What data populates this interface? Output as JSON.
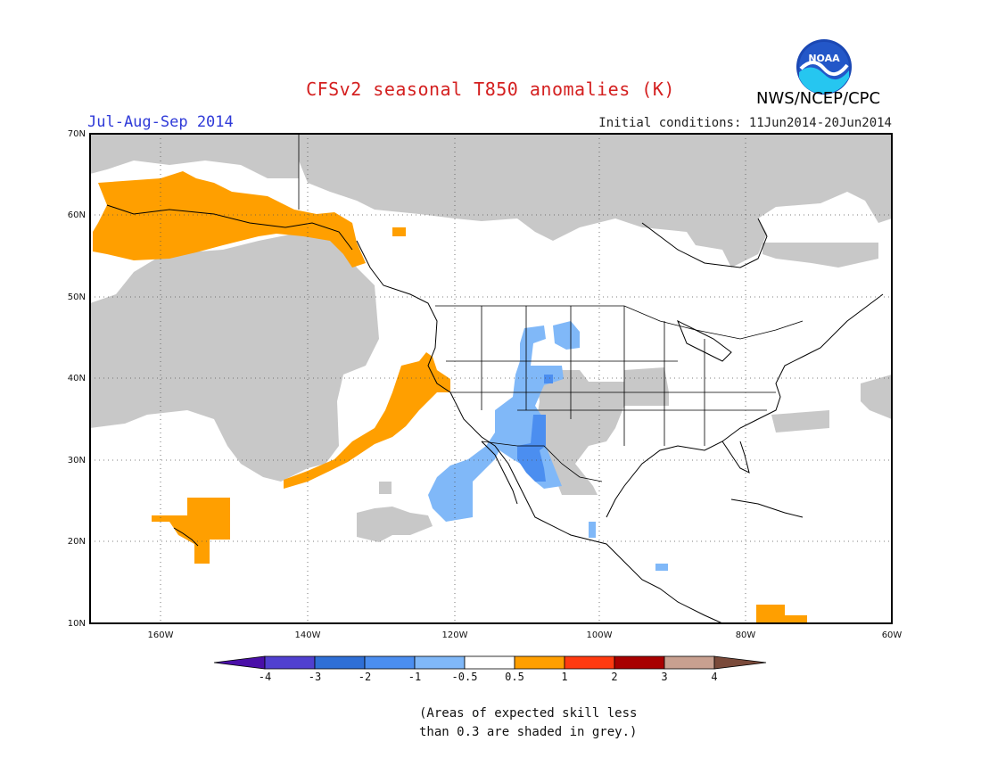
{
  "header": {
    "title": "CFSv2 seasonal T850 anomalies (K)",
    "period": "Jul-Aug-Sep 2014",
    "initial_conditions": "Initial conditions: 11Jun2014-20Jun2014",
    "agency": "NWS/NCEP/CPC",
    "logo_text": "NOAA"
  },
  "map": {
    "lat_labels": [
      "70N",
      "60N",
      "50N",
      "40N",
      "30N",
      "20N",
      "10N"
    ],
    "lon_labels": [
      "160W",
      "140W",
      "120W",
      "100W",
      "80W",
      "60W"
    ],
    "grid": "dotted"
  },
  "colorbar": {
    "ticks": [
      "-4",
      "-3",
      "-2",
      "-1",
      "-0.5",
      "0.5",
      "1",
      "2",
      "3",
      "4"
    ],
    "colors": [
      "#4a0fa8",
      "#5040d0",
      "#2f6fd6",
      "#4b8ef0",
      "#80b8f8",
      "#ffffff",
      "#ff9f00",
      "#ff3a10",
      "#a80000",
      "#c8a090",
      "#7a4a3a"
    ]
  },
  "colors": {
    "grey_low_skill": "#c8c8c8",
    "warm_anomaly": "#ff9f00",
    "cool_light": "#80b8f8",
    "cool_medium": "#4b8ef0"
  },
  "note": {
    "line1": "(Areas of expected skill less",
    "line2": "than 0.3 are shaded in grey.)"
  }
}
